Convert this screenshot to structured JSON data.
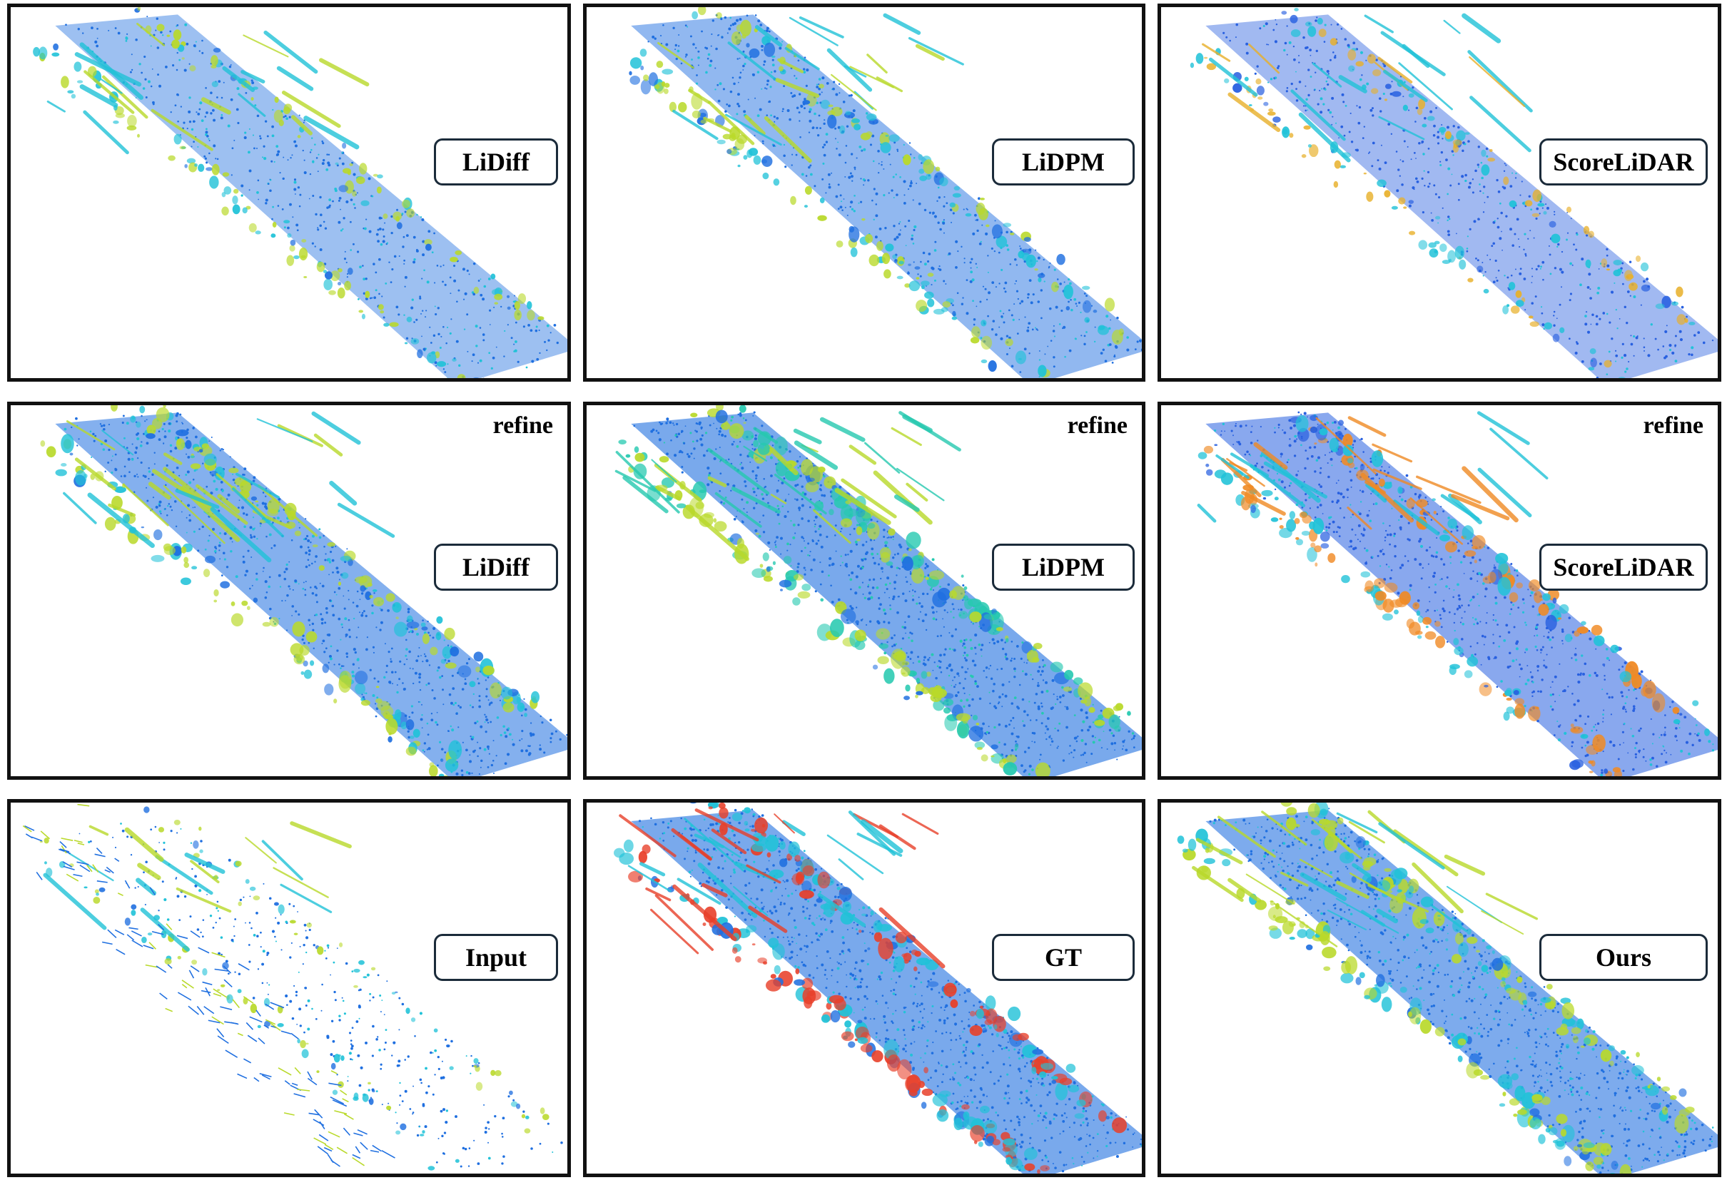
{
  "panels": [
    {
      "label": "LiDiff",
      "refine": "",
      "colors": {
        "primary": "#1f6fe0",
        "secondary": "#21c2d8",
        "accent": "#b9d92a"
      }
    },
    {
      "label": "LiDPM",
      "refine": "",
      "colors": {
        "primary": "#1f6fe0",
        "secondary": "#21c2d8",
        "accent": "#b9d92a"
      }
    },
    {
      "label": "ScoreLiDAR",
      "refine": "",
      "colors": {
        "primary": "#2860e0",
        "secondary": "#21c2d8",
        "accent": "#e8b02a"
      }
    },
    {
      "label": "LiDiff",
      "refine": "refine",
      "colors": {
        "primary": "#1f6fe0",
        "secondary": "#21c2d8",
        "accent": "#b9d92a"
      }
    },
    {
      "label": "LiDPM",
      "refine": "refine",
      "colors": {
        "primary": "#1f6fe0",
        "secondary": "#26c9b0",
        "accent": "#b9d92a"
      }
    },
    {
      "label": "ScoreLiDAR",
      "refine": "refine",
      "colors": {
        "primary": "#2860e0",
        "secondary": "#21c2d8",
        "accent": "#f08a24"
      }
    },
    {
      "label": "Input",
      "refine": "",
      "colors": {
        "primary": "#1f6fe0",
        "secondary": "#21c2d8",
        "accent": "#b9d92a"
      }
    },
    {
      "label": "GT",
      "refine": "",
      "colors": {
        "primary": "#1f6fe0",
        "secondary": "#21c2d8",
        "accent": "#e8402a"
      }
    },
    {
      "label": "Ours",
      "refine": "",
      "colors": {
        "primary": "#1f6fe0",
        "secondary": "#21c2d8",
        "accent": "#b9d92a"
      }
    }
  ]
}
